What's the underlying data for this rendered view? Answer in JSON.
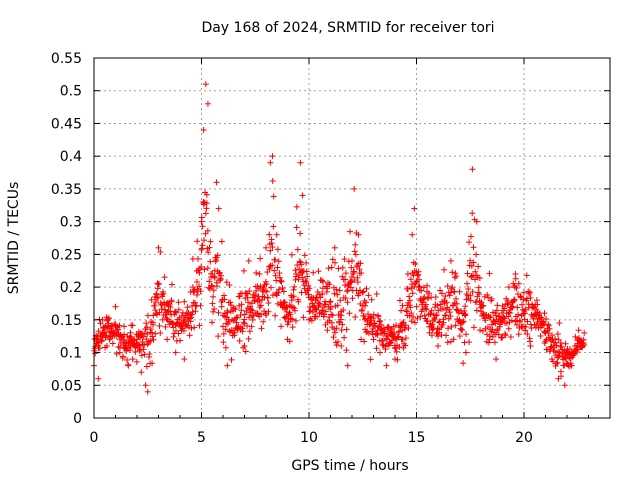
{
  "chart_data": {
    "type": "scatter",
    "title": "Day 168 of 2024, SRMTID for receiver tori",
    "xlabel": "GPS time / hours",
    "ylabel": "SRMTID / TECUs",
    "xlim": [
      0,
      24
    ],
    "ylim": [
      0,
      0.55
    ],
    "grid": true,
    "marker": "+",
    "point_color": "#ff0000",
    "x_ticks": [
      0,
      5,
      10,
      15,
      20
    ],
    "x_tick_labels": [
      "0",
      "5",
      "10",
      "15",
      "20"
    ],
    "y_ticks": [
      0,
      0.05,
      0.1,
      0.15,
      0.2,
      0.25,
      0.3,
      0.35,
      0.4,
      0.45,
      0.5,
      0.55
    ],
    "y_tick_labels": [
      "0",
      "0.05",
      "0.1",
      "0.15",
      "0.2",
      "0.25",
      "0.3",
      "0.35",
      "0.4",
      "0.45",
      "0.5",
      "0.55"
    ],
    "x_range_of_data": [
      0,
      22.8
    ],
    "envelope_note": "dense scatter; typical values 0.05-0.25 with peaks near 5.2h (~0.51), 8.3h (~0.40), 9.6h (~0.39), 12.1h (~0.35), 14.9h (~0.32), 17.6h (~0.38)",
    "sample_points": [
      [
        0.0,
        0.08
      ],
      [
        0.1,
        0.12
      ],
      [
        0.2,
        0.06
      ],
      [
        0.4,
        0.15
      ],
      [
        0.6,
        0.11
      ],
      [
        0.8,
        0.13
      ],
      [
        1.0,
        0.17
      ],
      [
        1.2,
        0.1
      ],
      [
        1.4,
        0.14
      ],
      [
        1.6,
        0.08
      ],
      [
        1.8,
        0.09
      ],
      [
        2.0,
        0.12
      ],
      [
        2.2,
        0.07
      ],
      [
        2.4,
        0.05
      ],
      [
        2.5,
        0.04
      ],
      [
        2.7,
        0.13
      ],
      [
        2.9,
        0.19
      ],
      [
        3.0,
        0.26
      ],
      [
        3.2,
        0.15
      ],
      [
        3.4,
        0.12
      ],
      [
        3.6,
        0.18
      ],
      [
        3.8,
        0.1
      ],
      [
        4.0,
        0.14
      ],
      [
        4.2,
        0.09
      ],
      [
        4.4,
        0.16
      ],
      [
        4.6,
        0.2
      ],
      [
        4.8,
        0.27
      ],
      [
        5.0,
        0.3
      ],
      [
        5.1,
        0.44
      ],
      [
        5.2,
        0.51
      ],
      [
        5.3,
        0.48
      ],
      [
        5.5,
        0.22
      ],
      [
        5.7,
        0.36
      ],
      [
        5.8,
        0.32
      ],
      [
        6.0,
        0.14
      ],
      [
        6.2,
        0.08
      ],
      [
        6.5,
        0.13
      ],
      [
        6.8,
        0.19
      ],
      [
        7.0,
        0.11
      ],
      [
        7.2,
        0.24
      ],
      [
        7.5,
        0.16
      ],
      [
        7.7,
        0.22
      ],
      [
        8.0,
        0.26
      ],
      [
        8.2,
        0.39
      ],
      [
        8.3,
        0.4
      ],
      [
        8.5,
        0.28
      ],
      [
        8.7,
        0.14
      ],
      [
        9.0,
        0.12
      ],
      [
        9.2,
        0.18
      ],
      [
        9.4,
        0.22
      ],
      [
        9.6,
        0.39
      ],
      [
        9.7,
        0.34
      ],
      [
        10.0,
        0.15
      ],
      [
        10.3,
        0.18
      ],
      [
        10.6,
        0.21
      ],
      [
        10.9,
        0.17
      ],
      [
        11.2,
        0.26
      ],
      [
        11.5,
        0.11
      ],
      [
        11.8,
        0.08
      ],
      [
        12.0,
        0.24
      ],
      [
        12.1,
        0.35
      ],
      [
        12.3,
        0.28
      ],
      [
        12.6,
        0.15
      ],
      [
        13.0,
        0.12
      ],
      [
        13.3,
        0.1
      ],
      [
        13.6,
        0.08
      ],
      [
        14.0,
        0.09
      ],
      [
        14.3,
        0.12
      ],
      [
        14.6,
        0.22
      ],
      [
        14.8,
        0.28
      ],
      [
        14.9,
        0.32
      ],
      [
        15.1,
        0.2
      ],
      [
        15.4,
        0.17
      ],
      [
        15.7,
        0.14
      ],
      [
        16.0,
        0.11
      ],
      [
        16.3,
        0.18
      ],
      [
        16.6,
        0.24
      ],
      [
        17.0,
        0.15
      ],
      [
        17.3,
        0.1
      ],
      [
        17.6,
        0.38
      ],
      [
        17.8,
        0.3
      ],
      [
        18.1,
        0.16
      ],
      [
        18.4,
        0.12
      ],
      [
        18.7,
        0.09
      ],
      [
        19.0,
        0.15
      ],
      [
        19.3,
        0.2
      ],
      [
        19.6,
        0.22
      ],
      [
        20.0,
        0.14
      ],
      [
        20.3,
        0.11
      ],
      [
        20.6,
        0.18
      ],
      [
        21.0,
        0.13
      ],
      [
        21.3,
        0.09
      ],
      [
        21.6,
        0.06
      ],
      [
        21.9,
        0.05
      ],
      [
        22.2,
        0.08
      ],
      [
        22.5,
        0.11
      ],
      [
        22.8,
        0.13
      ]
    ],
    "envelope": [
      [
        0.0,
        0.07,
        0.15
      ],
      [
        0.5,
        0.09,
        0.17
      ],
      [
        1.0,
        0.08,
        0.18
      ],
      [
        1.5,
        0.07,
        0.15
      ],
      [
        2.0,
        0.07,
        0.16
      ],
      [
        2.5,
        0.04,
        0.19
      ],
      [
        3.0,
        0.1,
        0.27
      ],
      [
        3.5,
        0.1,
        0.22
      ],
      [
        4.0,
        0.08,
        0.2
      ],
      [
        4.5,
        0.07,
        0.23
      ],
      [
        5.0,
        0.1,
        0.35
      ],
      [
        5.2,
        0.15,
        0.51
      ],
      [
        5.5,
        0.08,
        0.3
      ],
      [
        5.8,
        0.08,
        0.38
      ],
      [
        6.0,
        0.06,
        0.25
      ],
      [
        6.5,
        0.07,
        0.22
      ],
      [
        7.0,
        0.08,
        0.24
      ],
      [
        7.5,
        0.09,
        0.25
      ],
      [
        8.0,
        0.1,
        0.28
      ],
      [
        8.3,
        0.12,
        0.4
      ],
      [
        8.7,
        0.1,
        0.28
      ],
      [
        9.0,
        0.09,
        0.2
      ],
      [
        9.6,
        0.1,
        0.39
      ],
      [
        10.0,
        0.11,
        0.24
      ],
      [
        10.5,
        0.11,
        0.24
      ],
      [
        11.0,
        0.09,
        0.27
      ],
      [
        11.5,
        0.07,
        0.26
      ],
      [
        12.1,
        0.1,
        0.35
      ],
      [
        12.5,
        0.08,
        0.26
      ],
      [
        13.0,
        0.08,
        0.2
      ],
      [
        13.5,
        0.07,
        0.18
      ],
      [
        14.0,
        0.06,
        0.18
      ],
      [
        14.5,
        0.08,
        0.22
      ],
      [
        14.9,
        0.12,
        0.32
      ],
      [
        15.3,
        0.11,
        0.24
      ],
      [
        15.8,
        0.09,
        0.22
      ],
      [
        16.3,
        0.08,
        0.25
      ],
      [
        16.8,
        0.07,
        0.27
      ],
      [
        17.2,
        0.06,
        0.22
      ],
      [
        17.6,
        0.1,
        0.38
      ],
      [
        18.0,
        0.1,
        0.26
      ],
      [
        18.5,
        0.07,
        0.22
      ],
      [
        19.0,
        0.08,
        0.2
      ],
      [
        19.5,
        0.11,
        0.24
      ],
      [
        20.0,
        0.1,
        0.23
      ],
      [
        20.5,
        0.09,
        0.22
      ],
      [
        21.0,
        0.08,
        0.2
      ],
      [
        21.5,
        0.04,
        0.17
      ],
      [
        22.0,
        0.05,
        0.13
      ],
      [
        22.5,
        0.08,
        0.14
      ],
      [
        22.8,
        0.09,
        0.14
      ]
    ]
  }
}
